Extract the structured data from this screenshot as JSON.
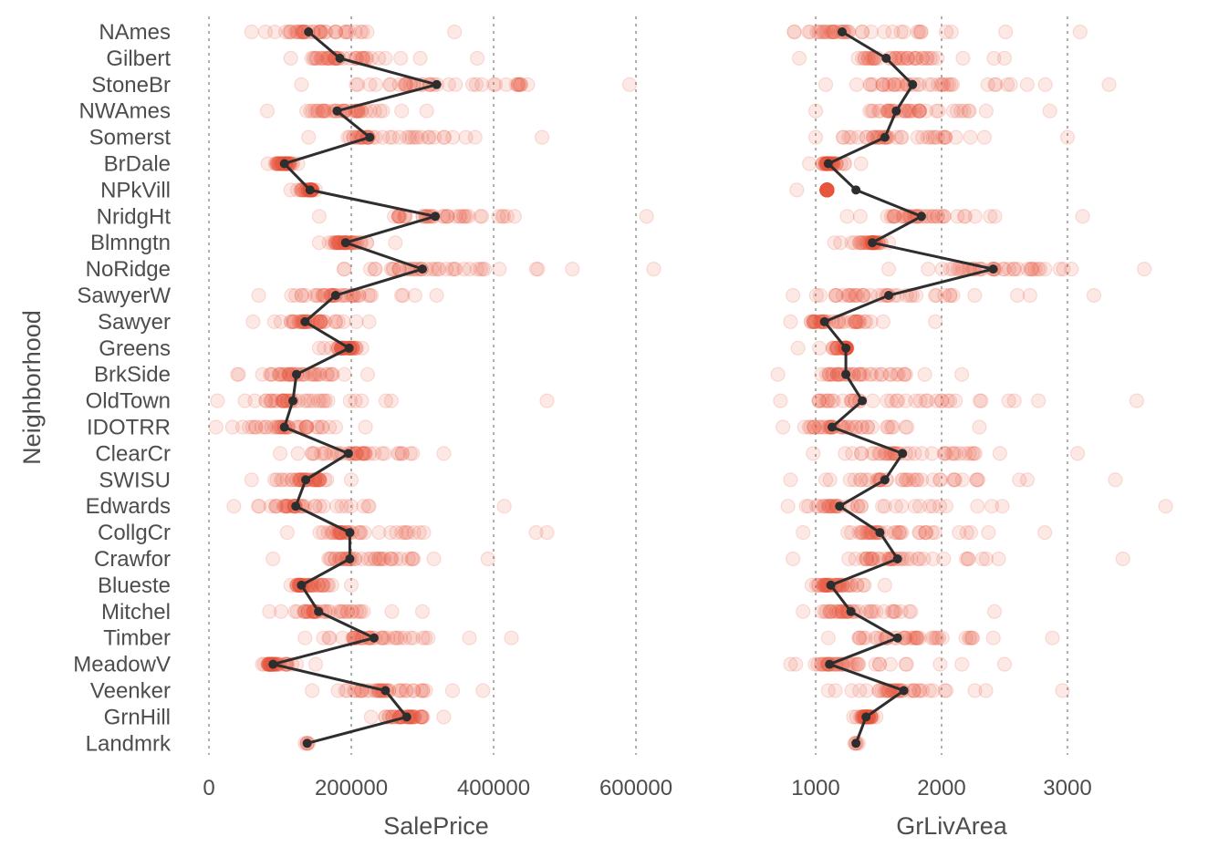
{
  "chart_data": {
    "type": "scatter",
    "ylabel": "Neighborhood",
    "categories": [
      "NAmes",
      "Gilbert",
      "StoneBr",
      "NWAmes",
      "Somerst",
      "BrDale",
      "NPkVill",
      "NridgHt",
      "Blmngtn",
      "NoRidge",
      "SawyerW",
      "Sawyer",
      "Greens",
      "BrkSide",
      "OldTown",
      "IDOTRR",
      "ClearCr",
      "SWISU",
      "Edwards",
      "CollgCr",
      "Crawfor",
      "Blueste",
      "Mitchel",
      "Timber",
      "MeadowV",
      "Veenker",
      "GrnHill",
      "Landmrk"
    ],
    "point_color": "#e8543a",
    "mean_color": "#2e2e2e",
    "panels": [
      {
        "xlabel": "SalePrice",
        "xlim": [
          -5000,
          680000
        ],
        "xticks": [
          0,
          200000,
          400000,
          600000
        ],
        "xtick_labels": [
          "0",
          "200000",
          "400000",
          "600000"
        ],
        "means": [
          140000,
          184000,
          320000,
          180000,
          226000,
          106000,
          142000,
          318000,
          192000,
          300000,
          178000,
          135000,
          197000,
          123000,
          118000,
          106000,
          196000,
          136000,
          122000,
          198000,
          198000,
          130000,
          154000,
          232000,
          90000,
          248000,
          278000,
          138000
        ],
        "spreads": [
          [
            60000,
            345000
          ],
          [
            115000,
            377000
          ],
          [
            130000,
            591000
          ],
          [
            82000,
            306000
          ],
          [
            140000,
            468000
          ],
          [
            83000,
            125000
          ],
          [
            115000,
            150000
          ],
          [
            155000,
            615000
          ],
          [
            155000,
            262000
          ],
          [
            190000,
            625000
          ],
          [
            70000,
            320000
          ],
          [
            62000,
            225000
          ],
          [
            155000,
            215000
          ],
          [
            40000,
            223000
          ],
          [
            12000,
            475000
          ],
          [
            10000,
            220000
          ],
          [
            100000,
            330000
          ],
          [
            60000,
            200000
          ],
          [
            35000,
            415000
          ],
          [
            110000,
            475000
          ],
          [
            90000,
            392000
          ],
          [
            115000,
            200000
          ],
          [
            85000,
            300000
          ],
          [
            135000,
            425000
          ],
          [
            75000,
            150000
          ],
          [
            145000,
            385000
          ],
          [
            228000,
            330000
          ],
          [
            135000,
            140000
          ]
        ]
      },
      {
        "xlabel": "GrLivArea",
        "xlim": [
          700,
          3800
        ],
        "xticks": [
          1000,
          2000,
          3000
        ],
        "xtick_labels": [
          "1000",
          "2000",
          "3000"
        ],
        "means": [
          1210,
          1560,
          1770,
          1640,
          1550,
          1100,
          1320,
          1840,
          1450,
          2410,
          1580,
          1070,
          1240,
          1240,
          1370,
          1130,
          1690,
          1550,
          1190,
          1510,
          1650,
          1120,
          1280,
          1650,
          1110,
          1700,
          1400,
          1320
        ],
        "spreads": [
          [
            830,
            3100
          ],
          [
            870,
            2500
          ],
          [
            1080,
            3330
          ],
          [
            1000,
            2860
          ],
          [
            1000,
            3000
          ],
          [
            950,
            1360
          ],
          [
            850,
            1090
          ],
          [
            1250,
            3120
          ],
          [
            1150,
            1580
          ],
          [
            1580,
            3610
          ],
          [
            820,
            3210
          ],
          [
            800,
            1950
          ],
          [
            860,
            1250
          ],
          [
            700,
            2160
          ],
          [
            720,
            3550
          ],
          [
            740,
            2300
          ],
          [
            980,
            3080
          ],
          [
            800,
            3380
          ],
          [
            780,
            3780
          ],
          [
            900,
            2820
          ],
          [
            820,
            3440
          ],
          [
            970,
            1550
          ],
          [
            900,
            2420
          ],
          [
            1100,
            2880
          ],
          [
            800,
            2500
          ],
          [
            1100,
            2960
          ],
          [
            1300,
            1480
          ],
          [
            1310,
            1340
          ]
        ]
      }
    ]
  }
}
